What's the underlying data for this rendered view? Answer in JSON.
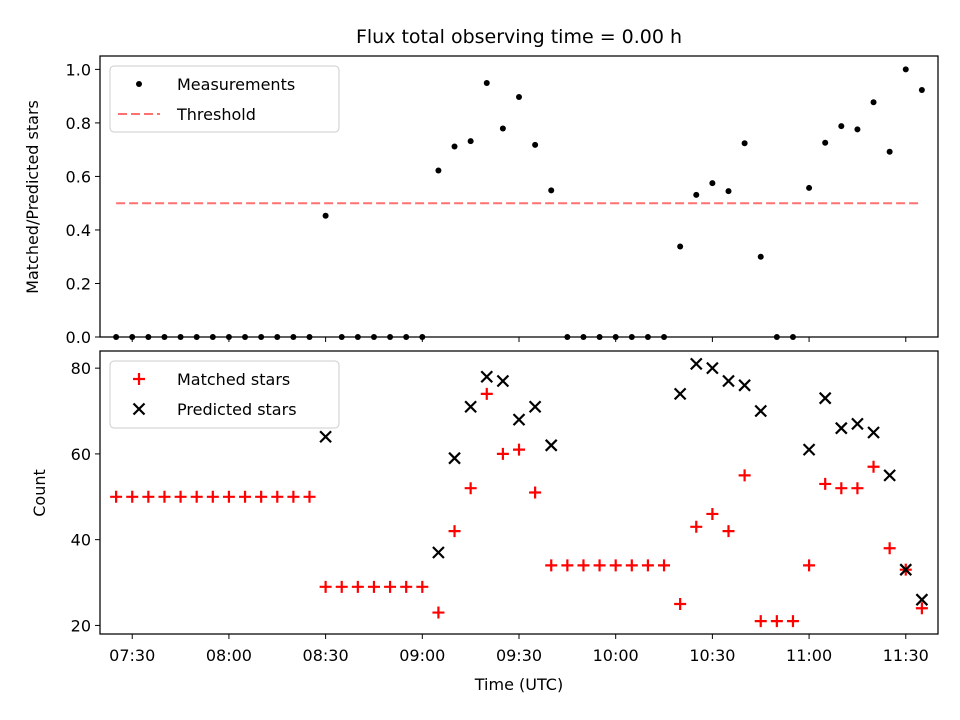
{
  "title": "Flux total observing time = 0.00 h",
  "chart_data": [
    {
      "type": "scatter",
      "ylabel": "Matched/Predicted stars",
      "xlabel": "",
      "xlim": [
        "07:20",
        "11:40"
      ],
      "ylim": [
        0,
        1.05
      ],
      "yticks": [
        0.0,
        0.2,
        0.4,
        0.6,
        0.8,
        1.0
      ],
      "ytick_labels": [
        "0.0",
        "0.2",
        "0.4",
        "0.6",
        "0.8",
        "1.0"
      ],
      "legend_position": "upper-left",
      "series": [
        {
          "name": "Measurements",
          "marker": "dot",
          "color": "#000000",
          "points": [
            [
              "07:25",
              0.0
            ],
            [
              "07:30",
              0.0
            ],
            [
              "07:35",
              0.0
            ],
            [
              "07:40",
              0.0
            ],
            [
              "07:45",
              0.0
            ],
            [
              "07:50",
              0.0
            ],
            [
              "07:55",
              0.0
            ],
            [
              "08:00",
              0.0
            ],
            [
              "08:05",
              0.0
            ],
            [
              "08:10",
              0.0
            ],
            [
              "08:15",
              0.0
            ],
            [
              "08:20",
              0.0
            ],
            [
              "08:25",
              0.0
            ],
            [
              "08:30",
              0.453
            ],
            [
              "08:35",
              0.0
            ],
            [
              "08:40",
              0.0
            ],
            [
              "08:45",
              0.0
            ],
            [
              "08:50",
              0.0
            ],
            [
              "08:55",
              0.0
            ],
            [
              "09:00",
              0.0
            ],
            [
              "09:05",
              0.622
            ],
            [
              "09:10",
              0.712
            ],
            [
              "09:15",
              0.732
            ],
            [
              "09:20",
              0.949
            ],
            [
              "09:25",
              0.779
            ],
            [
              "09:30",
              0.897
            ],
            [
              "09:35",
              0.718
            ],
            [
              "09:40",
              0.548
            ],
            [
              "09:45",
              0.0
            ],
            [
              "09:50",
              0.0
            ],
            [
              "09:55",
              0.0
            ],
            [
              "10:00",
              0.0
            ],
            [
              "10:05",
              0.0
            ],
            [
              "10:10",
              0.0
            ],
            [
              "10:15",
              0.0
            ],
            [
              "10:20",
              0.338
            ],
            [
              "10:25",
              0.531
            ],
            [
              "10:30",
              0.575
            ],
            [
              "10:35",
              0.545
            ],
            [
              "10:40",
              0.724
            ],
            [
              "10:45",
              0.3
            ],
            [
              "10:50",
              0.0
            ],
            [
              "10:55",
              0.0
            ],
            [
              "11:00",
              0.557
            ],
            [
              "11:05",
              0.726
            ],
            [
              "11:10",
              0.788
            ],
            [
              "11:15",
              0.776
            ],
            [
              "11:20",
              0.877
            ],
            [
              "11:25",
              0.692
            ],
            [
              "11:30",
              1.0
            ],
            [
              "11:35",
              0.923
            ]
          ]
        },
        {
          "name": "Threshold",
          "marker": "dashed-line",
          "color": "#ff7070",
          "points": [
            [
              "07:25",
              0.5
            ],
            [
              "11:35",
              0.5
            ]
          ]
        }
      ]
    },
    {
      "type": "scatter",
      "ylabel": "Count",
      "xlabel": "Time (UTC)",
      "xlim": [
        "07:20",
        "11:40"
      ],
      "ylim": [
        18,
        84
      ],
      "yticks": [
        20,
        40,
        60,
        80
      ],
      "ytick_labels": [
        "20",
        "40",
        "60",
        "80"
      ],
      "xticks": [
        "07:30",
        "08:00",
        "08:30",
        "09:00",
        "09:30",
        "10:00",
        "10:30",
        "11:00",
        "11:30"
      ],
      "legend_position": "upper-left",
      "series": [
        {
          "name": "Matched stars",
          "marker": "plus",
          "color": "#ff0000",
          "points": [
            [
              "07:25",
              50
            ],
            [
              "07:30",
              50
            ],
            [
              "07:35",
              50
            ],
            [
              "07:40",
              50
            ],
            [
              "07:45",
              50
            ],
            [
              "07:50",
              50
            ],
            [
              "07:55",
              50
            ],
            [
              "08:00",
              50
            ],
            [
              "08:05",
              50
            ],
            [
              "08:10",
              50
            ],
            [
              "08:15",
              50
            ],
            [
              "08:20",
              50
            ],
            [
              "08:25",
              50
            ],
            [
              "08:30",
              29
            ],
            [
              "08:35",
              29
            ],
            [
              "08:40",
              29
            ],
            [
              "08:45",
              29
            ],
            [
              "08:50",
              29
            ],
            [
              "08:55",
              29
            ],
            [
              "09:00",
              29
            ],
            [
              "09:05",
              23
            ],
            [
              "09:10",
              42
            ],
            [
              "09:15",
              52
            ],
            [
              "09:20",
              74
            ],
            [
              "09:25",
              60
            ],
            [
              "09:30",
              61
            ],
            [
              "09:35",
              51
            ],
            [
              "09:40",
              34
            ],
            [
              "09:45",
              34
            ],
            [
              "09:50",
              34
            ],
            [
              "09:55",
              34
            ],
            [
              "10:00",
              34
            ],
            [
              "10:05",
              34
            ],
            [
              "10:10",
              34
            ],
            [
              "10:15",
              34
            ],
            [
              "10:20",
              25
            ],
            [
              "10:25",
              43
            ],
            [
              "10:30",
              46
            ],
            [
              "10:35",
              42
            ],
            [
              "10:40",
              55
            ],
            [
              "10:45",
              21
            ],
            [
              "10:50",
              21
            ],
            [
              "10:55",
              21
            ],
            [
              "11:00",
              34
            ],
            [
              "11:05",
              53
            ],
            [
              "11:10",
              52
            ],
            [
              "11:15",
              52
            ],
            [
              "11:20",
              57
            ],
            [
              "11:25",
              38
            ],
            [
              "11:30",
              33
            ],
            [
              "11:35",
              24
            ]
          ]
        },
        {
          "name": "Predicted stars",
          "marker": "x",
          "color": "#000000",
          "points": [
            [
              "08:30",
              64
            ],
            [
              "09:05",
              37
            ],
            [
              "09:10",
              59
            ],
            [
              "09:15",
              71
            ],
            [
              "09:20",
              78
            ],
            [
              "09:25",
              77
            ],
            [
              "09:30",
              68
            ],
            [
              "09:35",
              71
            ],
            [
              "09:40",
              62
            ],
            [
              "10:20",
              74
            ],
            [
              "10:25",
              81
            ],
            [
              "10:30",
              80
            ],
            [
              "10:35",
              77
            ],
            [
              "10:40",
              76
            ],
            [
              "10:45",
              70
            ],
            [
              "11:00",
              61
            ],
            [
              "11:05",
              73
            ],
            [
              "11:10",
              66
            ],
            [
              "11:15",
              67
            ],
            [
              "11:20",
              65
            ],
            [
              "11:25",
              55
            ],
            [
              "11:30",
              33
            ],
            [
              "11:35",
              26
            ]
          ]
        }
      ]
    }
  ]
}
